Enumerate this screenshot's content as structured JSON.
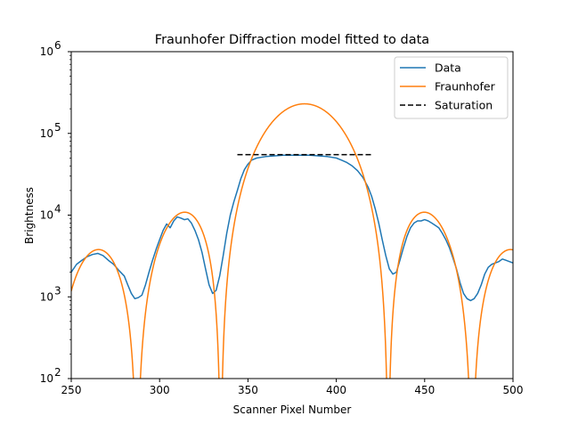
{
  "chart_data": {
    "type": "line",
    "title": "Fraunhofer Diffraction model fitted to data",
    "xlabel": "Scanner Pixel Number",
    "ylabel": "Brightness",
    "xlim": [
      250,
      500
    ],
    "ylim": [
      100,
      1000000
    ],
    "yscale": "log",
    "x_ticks": [
      250,
      300,
      350,
      400,
      450,
      500
    ],
    "x_tick_labels": [
      "250",
      "300",
      "350",
      "400",
      "450",
      "500"
    ],
    "y_ticks": [
      100,
      1000,
      10000,
      100000,
      1000000
    ],
    "y_tick_base": "10",
    "y_tick_exponents": [
      "2",
      "3",
      "4",
      "5",
      "6"
    ],
    "grid": false,
    "legend_position": "top-right",
    "series": [
      {
        "name": "Data",
        "color": "#1f77b4",
        "style": "solid",
        "x": [
          250,
          253,
          256,
          259,
          262,
          265,
          268,
          271,
          274,
          277,
          280,
          282,
          284,
          286,
          288,
          290,
          292,
          294,
          296,
          298,
          300,
          302,
          304,
          306,
          308,
          310,
          312,
          314,
          316,
          318,
          320,
          322,
          324,
          326,
          328,
          330,
          332,
          334,
          336,
          338,
          340,
          342,
          344,
          346,
          348,
          350,
          352,
          355,
          360,
          365,
          370,
          375,
          380,
          385,
          390,
          395,
          400,
          403,
          406,
          409,
          412,
          415,
          418,
          420,
          422,
          424,
          426,
          428,
          430,
          432,
          434,
          436,
          438,
          440,
          442,
          444,
          446,
          448,
          450,
          452,
          454,
          456,
          458,
          460,
          462,
          464,
          466,
          468,
          470,
          472,
          474,
          476,
          478,
          480,
          482,
          484,
          486,
          488,
          490,
          492,
          494,
          496,
          498,
          500
        ],
        "y": [
          2000,
          2500,
          2800,
          3100,
          3300,
          3400,
          3200,
          2800,
          2500,
          2100,
          1800,
          1400,
          1100,
          950,
          980,
          1050,
          1400,
          2000,
          2800,
          3800,
          5000,
          6500,
          7800,
          7000,
          8500,
          9500,
          9200,
          8800,
          9000,
          8000,
          6500,
          5000,
          3500,
          2200,
          1400,
          1100,
          1200,
          1800,
          3200,
          6000,
          10000,
          14500,
          20000,
          28000,
          36000,
          42000,
          47000,
          50000,
          52000,
          53000,
          54000,
          54000,
          54000,
          54000,
          53000,
          52000,
          50000,
          47000,
          44000,
          40000,
          35000,
          29000,
          22000,
          17000,
          12000,
          8000,
          5000,
          3200,
          2200,
          1900,
          2000,
          2800,
          4000,
          5500,
          7000,
          8000,
          8500,
          8500,
          8800,
          8500,
          8000,
          7500,
          7000,
          6000,
          5000,
          4000,
          3000,
          2200,
          1500,
          1100,
          950,
          900,
          950,
          1100,
          1400,
          1900,
          2300,
          2500,
          2600,
          2700,
          2900,
          2800,
          2700,
          2600
        ]
      },
      {
        "name": "Fraunhofer",
        "color": "#ff7f0e",
        "style": "solid",
        "model": "sinc2",
        "model_params": {
          "amplitude": 230000,
          "center": 382,
          "zero_spacing": 47.4
        }
      },
      {
        "name": "Saturation",
        "color": "#000000",
        "style": "dashed",
        "x": [
          344,
          420
        ],
        "y": [
          55000,
          55000
        ]
      }
    ]
  }
}
